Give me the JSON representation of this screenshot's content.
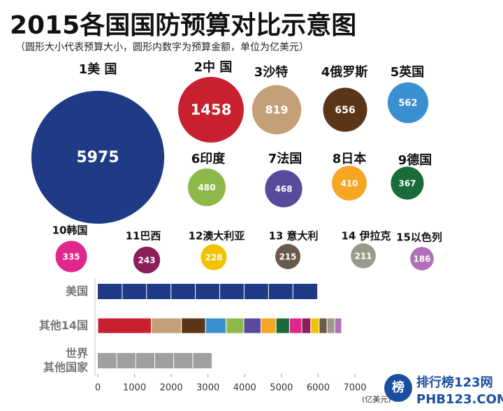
{
  "header": {
    "title": "2015各国国防预算对比示意图",
    "subtitle": "（圆形大小代表预算大小，圆形内数字为预算金额，单位为亿美元）"
  },
  "chart_data": [
    {
      "type": "bubble",
      "categories": [
        "1美 国",
        "2中 国",
        "3沙特",
        "4俄罗斯",
        "5英国",
        "6印度",
        "7法国",
        "8日本",
        "9德国",
        "10韩国",
        "11巴西",
        "12澳大利亚",
        "13 意大利",
        "14 伊拉克",
        "15以色列"
      ],
      "values": [
        5975,
        1458,
        819,
        656,
        562,
        480,
        468,
        410,
        367,
        335,
        243,
        228,
        215,
        211,
        186
      ],
      "colors": [
        "#1f3b86",
        "#c8202f",
        "#c4a078",
        "#5a3518",
        "#3a8fd0",
        "#8fb84a",
        "#5a4a9c",
        "#f5a623",
        "#1b6b3a",
        "#e0288c",
        "#8c1e5a",
        "#f2c200",
        "#6b5a4a",
        "#9a9a8a",
        "#b070b8"
      ]
    },
    {
      "type": "stacked-bar-h",
      "categories": [
        "美国",
        "其他14国",
        "世界\n其他国家"
      ],
      "rest_of_world": 3100,
      "rest_color": "#a0a0a0",
      "xlim": [
        0,
        7000
      ],
      "xticks": [
        0,
        1000,
        2000,
        3000,
        4000,
        5000,
        6000,
        7000
      ],
      "unit": "(亿美元)"
    }
  ],
  "watermark": {
    "logo": "榜",
    "site": "排行榜123网",
    "url": "PHB123.COM"
  }
}
